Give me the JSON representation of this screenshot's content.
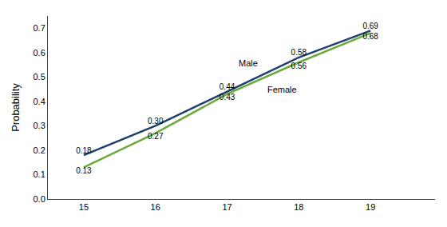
{
  "chart_data": {
    "type": "line",
    "x": [
      15,
      16,
      17,
      18,
      19
    ],
    "series": [
      {
        "name": "Male",
        "color": "#1f3f6e",
        "values": [
          0.18,
          0.3,
          0.44,
          0.58,
          0.69
        ],
        "value_labels": [
          "0.18",
          "0.30",
          "0.44",
          "0.58",
          "0.69"
        ]
      },
      {
        "name": "Female",
        "color": "#6aaa3a",
        "values": [
          0.13,
          0.27,
          0.43,
          0.56,
          0.68
        ],
        "value_labels": [
          "0.13",
          "0.27",
          "0.43",
          "0.56",
          "0.68"
        ]
      }
    ],
    "ylabel": "Probability",
    "xlim": [
      14.5,
      19.9
    ],
    "xticks": [
      15,
      16,
      17,
      18,
      19
    ],
    "ylim": [
      0.0,
      0.75
    ],
    "yticks": [
      {
        "value": 0.0,
        "label": "0.0"
      },
      0.1,
      0.2,
      0.3,
      0.4,
      0.5,
      0.6,
      0.7
    ],
    "grid": false,
    "data_labels": true
  }
}
